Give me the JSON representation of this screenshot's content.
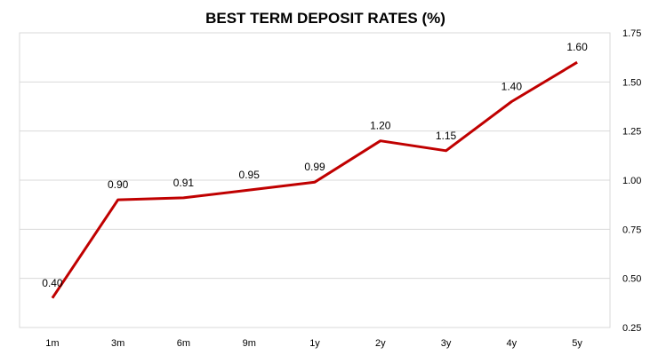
{
  "chart_data": {
    "type": "line",
    "title": "BEST TERM DEPOSIT RATES (%)",
    "xlabel": "",
    "ylabel": "",
    "categories": [
      "1m",
      "3m",
      "6m",
      "9m",
      "1y",
      "2y",
      "3y",
      "4y",
      "5y"
    ],
    "series": [
      {
        "values": [
          0.4,
          0.9,
          0.91,
          0.95,
          0.99,
          1.2,
          1.15,
          1.4,
          1.6
        ]
      }
    ],
    "data_labels": [
      "0.40",
      "0.90",
      "0.91",
      "0.95",
      "0.99",
      "1.20",
      "1.15",
      "1.40",
      "1.60"
    ],
    "ylim": [
      0.25,
      1.75
    ],
    "yticks": [
      "0.25",
      "0.50",
      "0.75",
      "1.00",
      "1.25",
      "1.50",
      "1.75"
    ],
    "y_axis_side": "right",
    "grid": true,
    "legend": "none",
    "colors": {
      "line": "#c00000",
      "grid": "#d9d9d9",
      "border": "#d9d9d9"
    }
  }
}
